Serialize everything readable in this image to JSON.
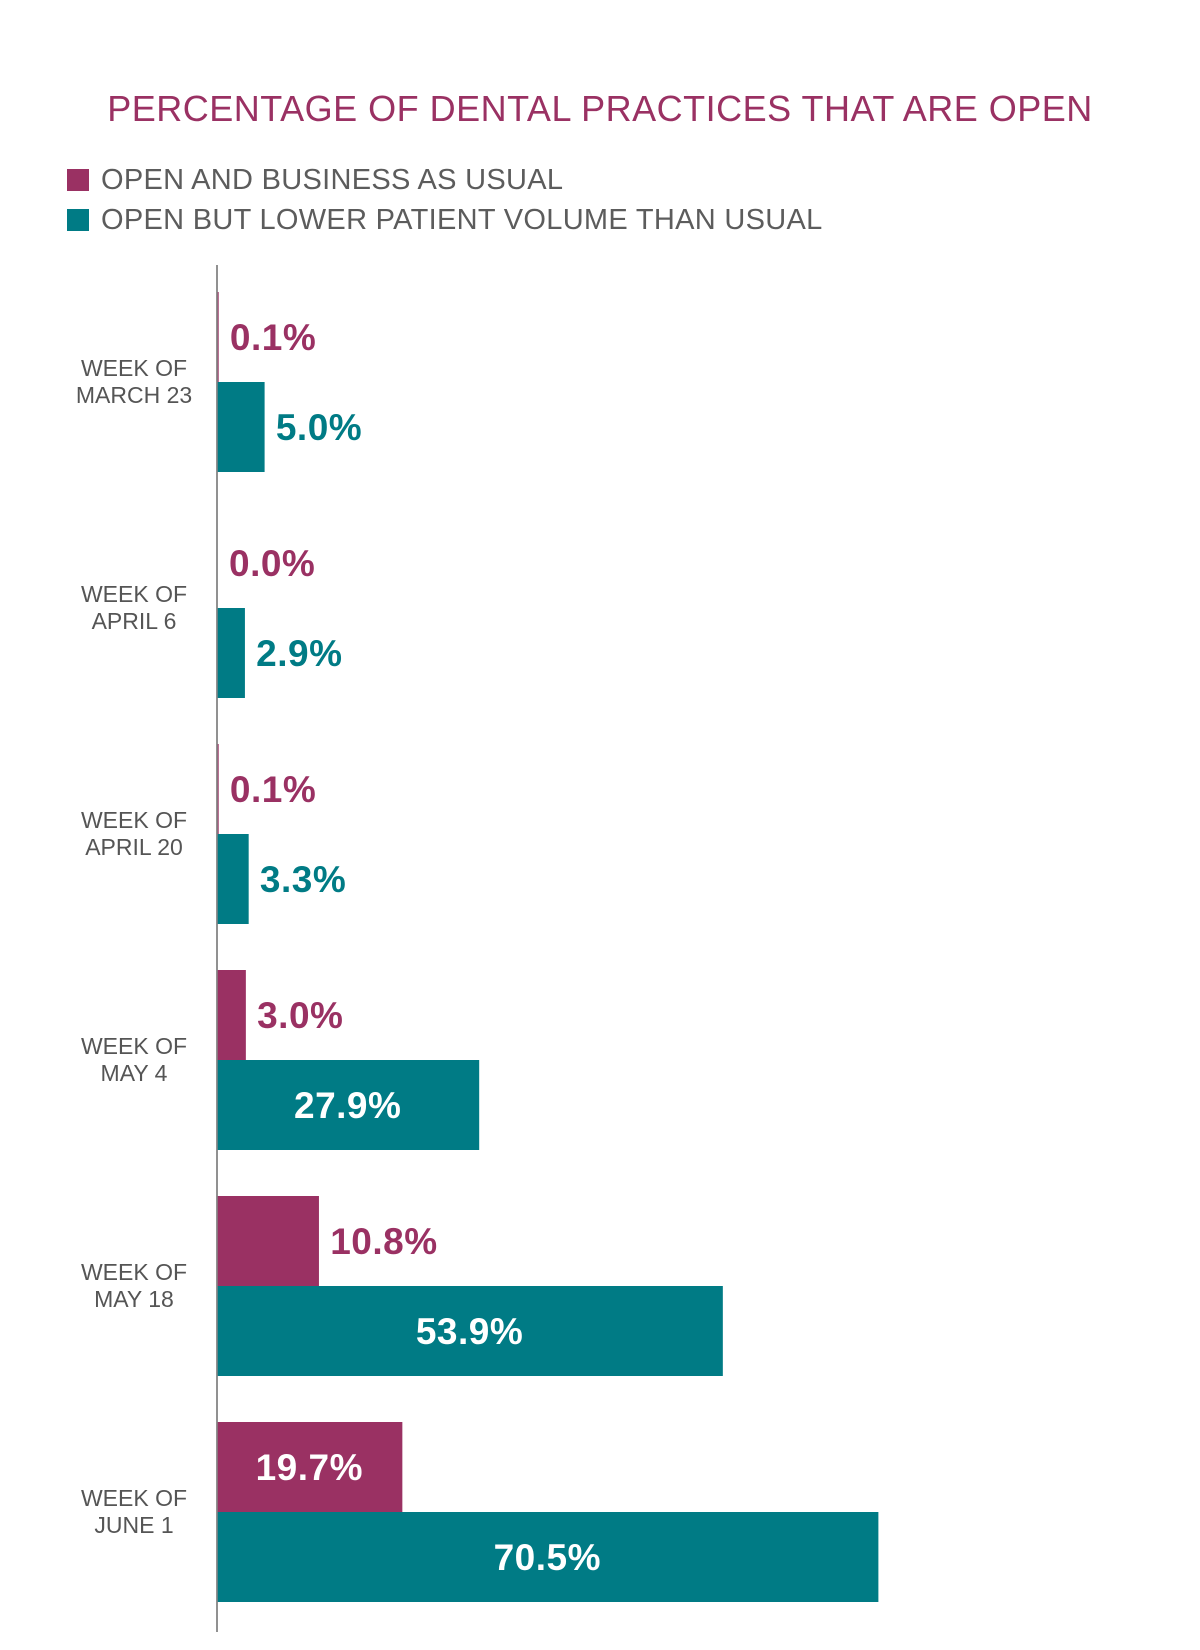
{
  "chart_data": {
    "type": "bar",
    "orientation": "horizontal",
    "title": "PERCENTAGE OF DENTAL PRACTICES THAT ARE OPEN",
    "categories": [
      [
        "WEEK OF",
        "MARCH 23"
      ],
      [
        "WEEK OF",
        "APRIL 6"
      ],
      [
        "WEEK OF",
        "APRIL 20"
      ],
      [
        "WEEK OF",
        "MAY 4"
      ],
      [
        "WEEK OF",
        "MAY 18"
      ],
      [
        "WEEK OF",
        "JUNE 1"
      ]
    ],
    "series": [
      {
        "name": "OPEN AND BUSINESS AS USUAL",
        "color": "#9a3163",
        "values": [
          0.1,
          0.0,
          0.1,
          3.0,
          10.8,
          19.7
        ],
        "labels": [
          "0.1%",
          "0.0%",
          "0.1%",
          "3.0%",
          "10.8%",
          "19.7%"
        ]
      },
      {
        "name": "OPEN BUT LOWER PATIENT VOLUME THAN USUAL",
        "color": "#007b85",
        "values": [
          5.0,
          2.9,
          3.3,
          27.9,
          53.9,
          70.5
        ],
        "labels": [
          "5.0%",
          "2.9%",
          "3.3%",
          "27.9%",
          "53.9%",
          "70.5%"
        ]
      }
    ],
    "xlim": [
      0,
      75
    ],
    "grid": false,
    "legend_position": "top-left"
  }
}
